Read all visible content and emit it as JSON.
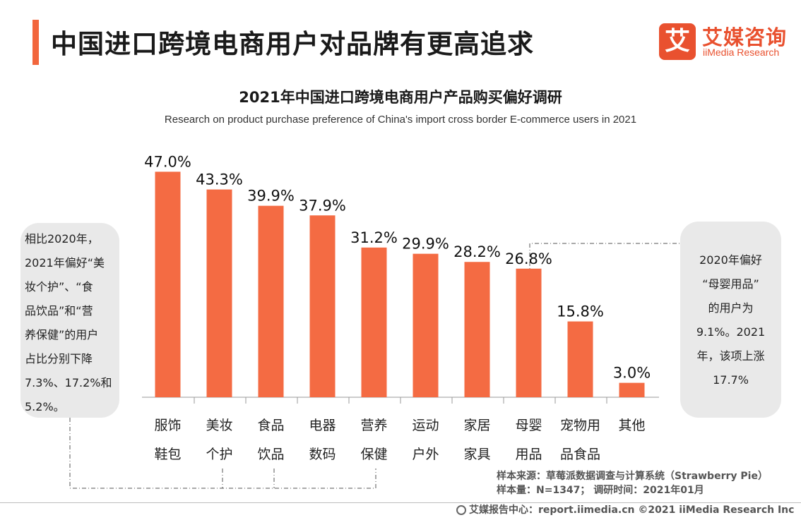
{
  "header": {
    "title": "中国进口跨境电商用户对品牌有更高追求"
  },
  "logo": {
    "mark": "艾",
    "cn": "艾媒咨询",
    "en": "iiMedia Research"
  },
  "chart_data": {
    "type": "bar",
    "title": "2021年中国进口跨境电商用户产品购买偏好调研",
    "subtitle": "Research on product purchase preference of China's import cross border E-commerce users in 2021",
    "categories": [
      [
        "服饰",
        "鞋包"
      ],
      [
        "美妆",
        "个护"
      ],
      [
        "食品",
        "饮品"
      ],
      [
        "电器",
        "数码"
      ],
      [
        "营养",
        "保健"
      ],
      [
        "运动",
        "户外"
      ],
      [
        "家居",
        "家具"
      ],
      [
        "母婴",
        "用品"
      ],
      [
        "宠物用",
        "品食品"
      ],
      [
        "其他"
      ]
    ],
    "values": [
      47.0,
      43.3,
      39.9,
      37.9,
      31.2,
      29.9,
      28.2,
      26.8,
      15.8,
      3.0
    ],
    "value_labels": [
      "47.0%",
      "43.3%",
      "39.9%",
      "37.9%",
      "31.2%",
      "29.9%",
      "28.2%",
      "26.8%",
      "15.8%",
      "3.0%"
    ],
    "ylim": [
      0,
      50
    ],
    "bar_color": "#f46b43",
    "grid": false
  },
  "callouts": {
    "left": [
      "相比2020年，",
      "2021年偏好“美",
      "妆个护”、“食",
      "品饮品”和“营",
      "养保健”的用户",
      "占比分别下降",
      "7.3%、17.2%和",
      "5.2%。"
    ],
    "right": [
      "2020年偏好",
      "“母婴用品”",
      "的用户为",
      "9.1%。2021",
      "年，该项上涨",
      "17.7%"
    ]
  },
  "source": {
    "line1": "样本来源：草莓派数据调查与计算系统（Strawberry Pie）",
    "line2": "样本量：N=1347；  调研时间：2021年01月"
  },
  "footer": {
    "text": "艾媒报告中心：report.iimedia.cn   ©2021  iiMedia Research  Inc"
  }
}
